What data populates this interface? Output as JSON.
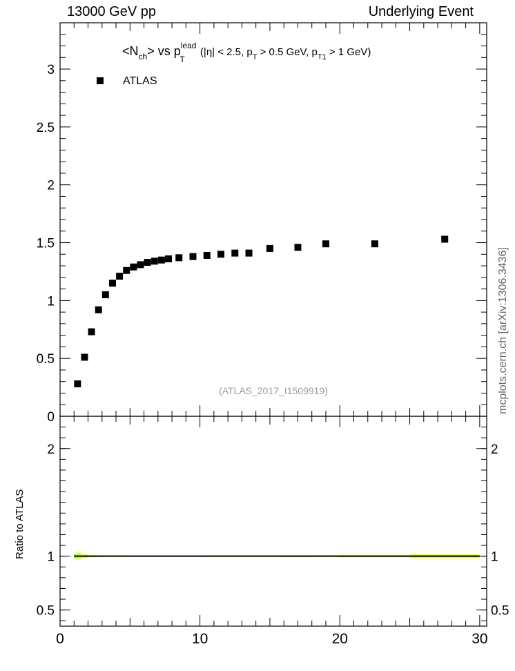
{
  "header": {
    "left": "13000 GeV pp",
    "right": "Underlying Event"
  },
  "side_label": "mcplots.cern.ch [arXiv:1306.3436]",
  "chart_data": {
    "type": "scatter",
    "title": {
      "n": "<N",
      "n_sub": "ch",
      "vs": "> vs p",
      "lead": "lead",
      "t_sub": "T",
      "open": " (|η| < 2.5, p",
      "t_sub2": "T",
      "mid": " > 0.5 GeV, p",
      "t1_sub": "T1",
      "close": " > 1 GeV)"
    },
    "legend": {
      "label": "ATLAS",
      "position": "top-left"
    },
    "watermark": "(ATLAS_2017_I1509919)",
    "xlim": [
      0,
      30.5
    ],
    "ylim": [
      0,
      3.4
    ],
    "yticks": [
      "0",
      "0.5",
      "1",
      "1.5",
      "2",
      "2.5",
      "3"
    ],
    "xticks": [
      "0",
      "10",
      "20",
      "30"
    ],
    "series": [
      {
        "name": "ATLAS",
        "x": [
          1.25,
          1.75,
          2.25,
          2.75,
          3.25,
          3.75,
          4.25,
          4.75,
          5.25,
          5.75,
          6.25,
          6.75,
          7.25,
          7.75,
          8.5,
          9.5,
          10.5,
          11.5,
          12.5,
          13.5,
          15.0,
          17.0,
          19.0,
          22.5,
          27.5
        ],
        "y": [
          0.28,
          0.51,
          0.73,
          0.92,
          1.05,
          1.15,
          1.21,
          1.26,
          1.29,
          1.31,
          1.33,
          1.34,
          1.35,
          1.36,
          1.37,
          1.38,
          1.39,
          1.4,
          1.41,
          1.41,
          1.45,
          1.46,
          1.49,
          1.49,
          1.53
        ]
      }
    ],
    "ratio": {
      "ylabel": "Ratio to ATLAS",
      "ylim": [
        0.35,
        2.3
      ],
      "yticks": [
        "0.5",
        "1",
        "2"
      ],
      "band_edges": [
        1.0,
        1.5,
        2.0,
        2.5,
        3.0,
        3.5,
        4.0,
        5.0,
        6.0,
        7.0,
        8.0,
        9.0,
        10.0,
        11.0,
        12.0,
        13.0,
        14.0,
        16.0,
        18.0,
        20.0,
        25.0,
        30.0
      ],
      "stat_band": [
        0.02,
        0.012,
        0.008,
        0.006,
        0.005,
        0.005,
        0.005,
        0.005,
        0.005,
        0.005,
        0.005,
        0.005,
        0.005,
        0.005,
        0.005,
        0.005,
        0.006,
        0.006,
        0.006,
        0.008,
        0.012
      ],
      "total_band": [
        0.035,
        0.02,
        0.012,
        0.01,
        0.008,
        0.007,
        0.007,
        0.006,
        0.006,
        0.006,
        0.006,
        0.006,
        0.007,
        0.007,
        0.007,
        0.008,
        0.009,
        0.01,
        0.011,
        0.013,
        0.022
      ],
      "colors": {
        "total": "#ffff66",
        "stat": "#99ff66",
        "line": "#000000"
      }
    }
  }
}
